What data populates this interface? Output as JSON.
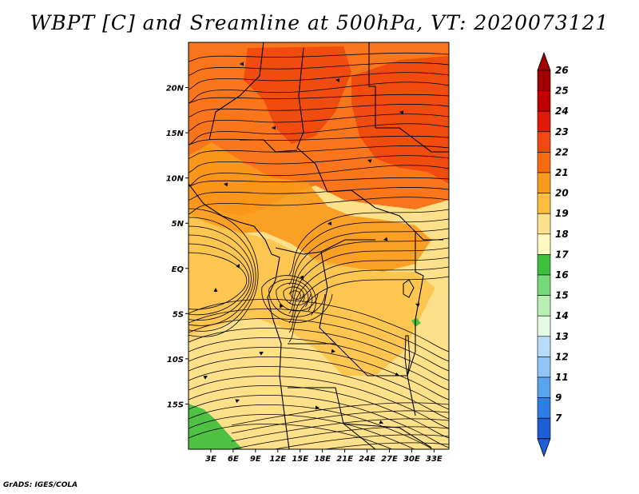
{
  "title": "WBPT [C] and Sreamline at 500hPa, VT: 2020073121",
  "footer": "GrADS: IGES/COLA",
  "map": {
    "lon_range": [
      0,
      35
    ],
    "lat_range": [
      -20,
      25
    ],
    "lat_ticks": [
      {
        "label": "20N",
        "value": 20
      },
      {
        "label": "15N",
        "value": 15
      },
      {
        "label": "10N",
        "value": 10
      },
      {
        "label": "5N",
        "value": 5
      },
      {
        "label": "EQ",
        "value": 0
      },
      {
        "label": "5S",
        "value": -5
      },
      {
        "label": "10S",
        "value": -10
      },
      {
        "label": "15S",
        "value": -15
      }
    ],
    "lon_ticks": [
      {
        "label": "3E",
        "value": 3
      },
      {
        "label": "6E",
        "value": 6
      },
      {
        "label": "9E",
        "value": 9
      },
      {
        "label": "12E",
        "value": 12
      },
      {
        "label": "15E",
        "value": 15
      },
      {
        "label": "18E",
        "value": 18
      },
      {
        "label": "21E",
        "value": 21
      },
      {
        "label": "24E",
        "value": 24
      },
      {
        "label": "27E",
        "value": 27
      },
      {
        "label": "30E",
        "value": 30
      },
      {
        "label": "33E",
        "value": 33
      }
    ]
  },
  "colorbar": {
    "levels": [
      {
        "label": "26",
        "color": "#a00000"
      },
      {
        "label": "25",
        "color": "#c00000"
      },
      {
        "label": "24",
        "color": "#e01a0a"
      },
      {
        "label": "23",
        "color": "#f04810"
      },
      {
        "label": "22",
        "color": "#f86a10"
      },
      {
        "label": "21",
        "color": "#fa9a1a"
      },
      {
        "label": "20",
        "color": "#fcbe3c"
      },
      {
        "label": "19",
        "color": "#fde08a"
      },
      {
        "label": "18",
        "color": "#fff8c0"
      },
      {
        "label": "17",
        "color": "#3cbf3c"
      },
      {
        "label": "16",
        "color": "#76d97a"
      },
      {
        "label": "15",
        "color": "#b8f0b4"
      },
      {
        "label": "14",
        "color": "#e4fae4"
      },
      {
        "label": "13",
        "color": "#b6dcfa"
      },
      {
        "label": "12",
        "color": "#8ec4f6"
      },
      {
        "label": "11",
        "color": "#5aa4ef"
      },
      {
        "label": "9",
        "color": "#2f7ee6"
      },
      {
        "label": "7",
        "color": "#1d5ed6"
      }
    ],
    "below_color": "#1e5fd8",
    "labels_bottom_to_top": [
      "7",
      "9",
      "11",
      "12",
      "13",
      "14",
      "15",
      "16",
      "17",
      "18",
      "19",
      "20",
      "21",
      "22",
      "23",
      "24",
      "25",
      "26"
    ]
  },
  "field_regions": [
    {
      "name": "north-hot-band",
      "level": "22"
    },
    {
      "name": "north-core-west",
      "level": "23"
    },
    {
      "name": "north-core-east",
      "level": "23"
    },
    {
      "name": "gulf-guinea-warm",
      "level": "21"
    },
    {
      "name": "central-warm-band",
      "level": "20"
    },
    {
      "name": "south-cool",
      "level": "19"
    },
    {
      "name": "southwest-green",
      "level": "17"
    },
    {
      "name": "east-coast-green",
      "level": "17"
    }
  ]
}
